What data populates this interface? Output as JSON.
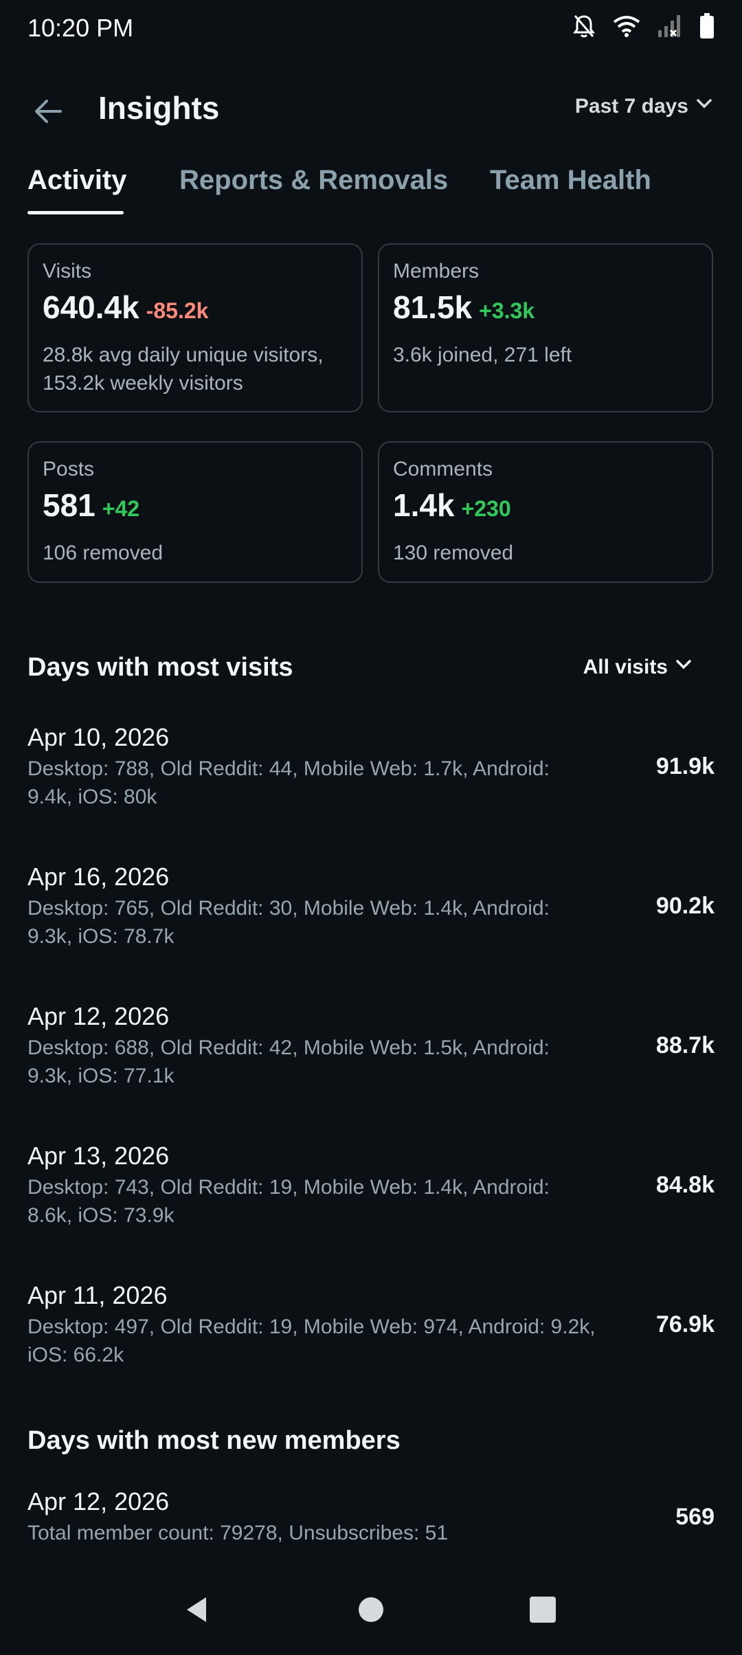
{
  "status_bar": {
    "time": "10:20 PM",
    "icons": [
      "bell-muted-icon",
      "wifi-icon",
      "signal-icon",
      "battery-icon"
    ]
  },
  "app_bar": {
    "title": "Insights",
    "range_label": "Past 7 days"
  },
  "tabs": [
    {
      "label": "Activity",
      "active": true
    },
    {
      "label": "Reports & Removals",
      "active": false
    },
    {
      "label": "Team Health",
      "active": false
    }
  ],
  "stats": {
    "visits": {
      "label": "Visits",
      "value": "640.4k",
      "delta": "-85.2k",
      "desc": "28.8k avg daily unique visitors, 153.2k weekly visitors"
    },
    "members": {
      "label": "Members",
      "value": "81.5k",
      "delta": "+3.3k",
      "desc": "3.6k joined, 271 left"
    },
    "posts": {
      "label": "Posts",
      "value": "581",
      "delta": "+42",
      "desc": "106 removed"
    },
    "comments": {
      "label": "Comments",
      "value": "1.4k",
      "delta": "+230",
      "desc": "130 removed"
    }
  },
  "visits_section": {
    "title": "Days with most visits",
    "filter_label": "All visits",
    "days": [
      {
        "date": "Apr 10, 2026",
        "breakdown": "Desktop: 788, Old Reddit: 44, Mobile Web: 1.7k, Android: 9.4k, iOS: 80k",
        "total": "91.9k"
      },
      {
        "date": "Apr 16, 2026",
        "breakdown": "Desktop: 765, Old Reddit: 30, Mobile Web: 1.4k, Android: 9.3k, iOS: 78.7k",
        "total": "90.2k"
      },
      {
        "date": "Apr 12, 2026",
        "breakdown": "Desktop: 688, Old Reddit: 42, Mobile Web: 1.5k, Android: 9.3k, iOS: 77.1k",
        "total": "88.7k"
      },
      {
        "date": "Apr 13, 2026",
        "breakdown": "Desktop: 743, Old Reddit: 19, Mobile Web: 1.4k, Android: 8.6k, iOS: 73.9k",
        "total": "84.8k"
      },
      {
        "date": "Apr 11, 2026",
        "breakdown": "Desktop: 497, Old Reddit: 19, Mobile Web: 974, Android: 9.2k, iOS: 66.2k",
        "total": "76.9k"
      }
    ]
  },
  "members_section": {
    "title": "Days with most new members",
    "days": [
      {
        "date": "Apr 12, 2026",
        "breakdown": "Total member count: 79278, Unsubscribes: 51",
        "total": "569"
      }
    ]
  },
  "colors": {
    "background": "#0b1014",
    "negative": "#ff8a7a",
    "positive": "#2ecb5a",
    "muted_text": "#aab6bc",
    "inactive_tab": "#8ba2ad"
  }
}
